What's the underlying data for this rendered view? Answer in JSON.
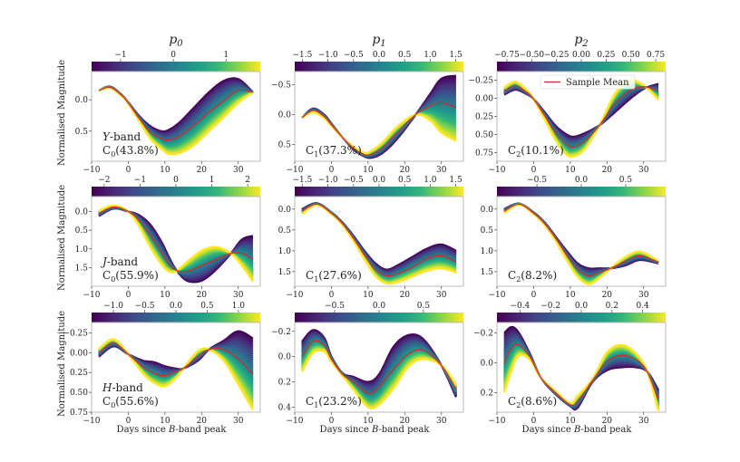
{
  "chart_data": {
    "type": "line",
    "figure": "Principal component variations of normalised NIR light curves",
    "column_titles": [
      "p",
      "p",
      "p"
    ],
    "column_title_subscripts": [
      "0",
      "1",
      "2"
    ],
    "row_labels": [
      "Y-band",
      "J-band",
      "H-band"
    ],
    "ylabel": "Normalised Magnitude",
    "xlabel": "Days since B-band peak",
    "xlim": [
      -10,
      36
    ],
    "xticks": [
      -10,
      0,
      10,
      20,
      30
    ],
    "y_inverted": true,
    "legend": {
      "label": "Sample Mean",
      "color": "#d62728",
      "placement": "upper-center",
      "panel": "Y-band p2"
    },
    "colormap": "viridis",
    "panels": [
      {
        "row": 0,
        "col": 0,
        "component": "C",
        "sub": "0",
        "variance": "(43.8%)",
        "band": "Y",
        "ylim": [
          -0.45,
          0.98
        ],
        "yticks": [
          0.0,
          0.5
        ],
        "ytick_labels": [
          "0.0",
          "0.5"
        ],
        "cbar_range": [
          -1.55,
          1.65
        ],
        "cbar_ticks": [
          -1,
          0,
          1
        ],
        "cbar_tick_labels": [
          "−1",
          "0",
          "1"
        ],
        "x": [
          -8,
          -5,
          -2,
          0,
          3,
          6,
          9,
          11,
          14,
          18,
          22,
          26,
          30,
          34
        ],
        "mean": [
          -0.15,
          -0.2,
          -0.08,
          0.05,
          0.3,
          0.52,
          0.62,
          0.64,
          0.58,
          0.4,
          0.2,
          0.02,
          -0.15,
          -0.12
        ],
        "low": [
          -0.15,
          -0.21,
          -0.09,
          0.04,
          0.26,
          0.42,
          0.5,
          0.48,
          0.36,
          0.12,
          -0.12,
          -0.3,
          -0.33,
          -0.12
        ],
        "high": [
          -0.15,
          -0.19,
          -0.07,
          0.06,
          0.34,
          0.62,
          0.78,
          0.86,
          0.85,
          0.72,
          0.5,
          0.28,
          0.05,
          -0.12
        ]
      },
      {
        "row": 0,
        "col": 1,
        "component": "C",
        "sub": "1",
        "variance": "(37.3%)",
        "band": "Y",
        "ylim": [
          -0.72,
          0.78
        ],
        "yticks": [
          -0.5,
          0.0,
          0.5
        ],
        "ytick_labels": [
          "−0.5",
          "0.0",
          "0.5"
        ],
        "cbar_range": [
          -1.65,
          1.65
        ],
        "cbar_ticks": [
          -1.5,
          -1.0,
          -0.5,
          0.0,
          0.5,
          1.0,
          1.5
        ],
        "cbar_tick_labels": [
          "−1.5",
          "−1.0",
          "−0.5",
          "0.0",
          "0.5",
          "1.0",
          "1.5"
        ],
        "x": [
          -8,
          -5,
          -2,
          0,
          3,
          6,
          9,
          11,
          14,
          18,
          23,
          27,
          30,
          34
        ],
        "mean": [
          0.05,
          -0.07,
          0.03,
          0.17,
          0.38,
          0.56,
          0.67,
          0.66,
          0.55,
          0.3,
          0.0,
          -0.15,
          -0.2,
          -0.12
        ],
        "low": [
          0.05,
          -0.1,
          0.0,
          0.15,
          0.38,
          0.58,
          0.7,
          0.72,
          0.64,
          0.4,
          0.0,
          -0.35,
          -0.6,
          -0.65
        ],
        "high": [
          0.05,
          -0.04,
          0.06,
          0.19,
          0.38,
          0.54,
          0.64,
          0.6,
          0.46,
          0.2,
          0.0,
          0.1,
          0.3,
          0.44
        ]
      },
      {
        "row": 0,
        "col": 2,
        "component": "C",
        "sub": "2",
        "variance": "(10.1%)",
        "band": "Y",
        "ylim": [
          -0.37,
          0.87
        ],
        "yticks": [
          -0.25,
          0.0,
          0.25,
          0.5,
          0.75
        ],
        "ytick_labels": [
          "−0.25",
          "0.00",
          "0.25",
          "0.50",
          "0.75"
        ],
        "cbar_range": [
          -0.85,
          0.85
        ],
        "cbar_ticks": [
          -0.75,
          -0.5,
          -0.25,
          0.0,
          0.25,
          0.5,
          0.75
        ],
        "cbar_tick_labels": [
          "−0.75",
          "−0.50",
          "−0.25",
          "0.00",
          "0.25",
          "0.50",
          "0.75"
        ],
        "x": [
          -8,
          -5,
          -2,
          0,
          3,
          6,
          9,
          11,
          14,
          18,
          22,
          26,
          30,
          34
        ],
        "mean": [
          -0.1,
          -0.17,
          -0.09,
          0.01,
          0.24,
          0.48,
          0.64,
          0.67,
          0.59,
          0.37,
          0.08,
          -0.1,
          -0.16,
          -0.1
        ],
        "low": [
          -0.05,
          -0.12,
          -0.06,
          0.01,
          0.19,
          0.38,
          0.5,
          0.53,
          0.48,
          0.37,
          0.2,
          0.02,
          -0.13,
          -0.2
        ],
        "high": [
          -0.15,
          -0.23,
          -0.12,
          0.01,
          0.29,
          0.58,
          0.78,
          0.8,
          0.7,
          0.37,
          -0.05,
          -0.25,
          -0.18,
          0.02
        ]
      },
      {
        "row": 1,
        "col": 0,
        "component": "C",
        "sub": "0",
        "variance": "(55.9%)",
        "band": "J",
        "ylim": [
          -0.4,
          2.0
        ],
        "yticks": [
          0.0,
          0.5,
          1.0,
          1.5
        ],
        "ytick_labels": [
          "0.0",
          "0.5",
          "1.0",
          "1.5"
        ],
        "cbar_range": [
          -2.35,
          2.35
        ],
        "cbar_ticks": [
          -2,
          -1,
          0,
          1,
          2
        ],
        "cbar_tick_labels": [
          "−2",
          "−1",
          "0",
          "1",
          "2"
        ],
        "x": [
          -8,
          -4,
          0,
          3,
          6,
          9,
          11,
          13,
          16,
          20,
          24,
          28,
          31,
          34
        ],
        "mean": [
          0.05,
          -0.12,
          0.0,
          0.25,
          0.65,
          1.1,
          1.4,
          1.57,
          1.6,
          1.45,
          1.28,
          1.12,
          1.12,
          1.27
        ],
        "low": [
          0.12,
          -0.08,
          0.0,
          0.1,
          0.35,
          0.8,
          1.2,
          1.55,
          1.85,
          1.85,
          1.55,
          1.12,
          0.75,
          0.65
        ],
        "high": [
          -0.02,
          -0.16,
          0.0,
          0.4,
          0.95,
          1.4,
          1.6,
          1.6,
          1.35,
          1.05,
          0.95,
          1.12,
          1.45,
          1.87
        ]
      },
      {
        "row": 1,
        "col": 1,
        "component": "C",
        "sub": "1",
        "variance": "(27.6%)",
        "band": "J",
        "ylim": [
          -0.3,
          1.85
        ],
        "yticks": [
          0.0,
          0.5,
          1.0,
          1.5
        ],
        "ytick_labels": [
          "0.0",
          "0.5",
          "1.0",
          "1.5"
        ],
        "cbar_range": [
          -1.65,
          1.65
        ],
        "cbar_ticks": [
          -1.5,
          -1.0,
          -0.5,
          0.0,
          0.5,
          1.0,
          1.5
        ],
        "cbar_tick_labels": [
          "−1.5",
          "−1.0",
          "−0.5",
          "0.0",
          "0.5",
          "1.0",
          "1.5"
        ],
        "x": [
          -8,
          -4,
          0,
          3,
          6,
          9,
          12,
          15,
          18,
          22,
          26,
          30,
          34
        ],
        "mean": [
          0.05,
          -0.12,
          0.1,
          0.35,
          0.7,
          1.1,
          1.45,
          1.6,
          1.55,
          1.4,
          1.2,
          1.12,
          1.27
        ],
        "low": [
          0.0,
          -0.14,
          0.08,
          0.32,
          0.64,
          1.0,
          1.3,
          1.45,
          1.35,
          1.15,
          0.95,
          0.85,
          1.0
        ],
        "high": [
          0.12,
          -0.1,
          0.12,
          0.38,
          0.76,
          1.2,
          1.6,
          1.78,
          1.75,
          1.62,
          1.48,
          1.42,
          1.52
        ]
      },
      {
        "row": 1,
        "col": 2,
        "component": "C",
        "sub": "2",
        "variance": "(8.2%)",
        "band": "J",
        "ylim": [
          -0.3,
          1.85
        ],
        "yticks": [
          0.0,
          0.5,
          1.0,
          1.5
        ],
        "ytick_labels": [
          "0.0",
          "0.5",
          "1.0",
          "1.5"
        ],
        "cbar_range": [
          -0.95,
          0.95
        ],
        "cbar_ticks": [
          -0.5,
          0.0,
          0.5
        ],
        "cbar_tick_labels": [
          "−0.5",
          "0.0",
          "0.5"
        ],
        "x": [
          -8,
          -4,
          0,
          3,
          6,
          9,
          12,
          15,
          18,
          21,
          25,
          29,
          34
        ],
        "mean": [
          0.05,
          -0.12,
          0.1,
          0.35,
          0.7,
          1.1,
          1.45,
          1.6,
          1.52,
          1.42,
          1.25,
          1.12,
          1.27
        ],
        "low": [
          0.0,
          -0.13,
          0.08,
          0.32,
          0.66,
          1.0,
          1.3,
          1.42,
          1.42,
          1.42,
          1.35,
          1.22,
          1.3
        ],
        "high": [
          0.1,
          -0.11,
          0.12,
          0.38,
          0.76,
          1.22,
          1.62,
          1.8,
          1.65,
          1.42,
          1.15,
          1.02,
          1.24
        ]
      },
      {
        "row": 2,
        "col": 0,
        "component": "C",
        "sub": "0",
        "variance": "(55.6%)",
        "band": "H",
        "ylim": [
          -0.38,
          0.75
        ],
        "yticks": [
          -0.25,
          0.0,
          0.25,
          0.5,
          0.75
        ],
        "ytick_labels": [
          "−0.25",
          "0.00",
          "0.25",
          "0.50",
          "0.75"
        ],
        "cbar_range": [
          -1.35,
          1.35
        ],
        "cbar_ticks": [
          -1.0,
          -0.5,
          0.0,
          0.5,
          1.0
        ],
        "cbar_tick_labels": [
          "−1.0",
          "−0.5",
          "0.0",
          "0.5",
          "1.0"
        ],
        "x": [
          -8,
          -4,
          0,
          4,
          7,
          10,
          13,
          15,
          19,
          22,
          26,
          30,
          34
        ],
        "mean": [
          0.0,
          -0.12,
          0.02,
          0.18,
          0.26,
          0.29,
          0.24,
          0.2,
          0.05,
          -0.04,
          -0.04,
          0.08,
          0.27
        ],
        "low": [
          0.05,
          -0.08,
          0.02,
          0.1,
          0.12,
          0.17,
          0.2,
          0.2,
          0.1,
          -0.04,
          -0.15,
          -0.27,
          -0.18
        ],
        "high": [
          -0.05,
          -0.17,
          0.02,
          0.26,
          0.38,
          0.42,
          0.32,
          0.2,
          -0.02,
          -0.04,
          0.1,
          0.4,
          0.72
        ]
      },
      {
        "row": 2,
        "col": 1,
        "component": "C",
        "sub": "1",
        "variance": "(23.2%)",
        "band": "H",
        "ylim": [
          -0.27,
          0.44
        ],
        "yticks": [
          -0.2,
          0.0,
          0.2,
          0.4
        ],
        "ytick_labels": [
          "−0.2",
          "0.0",
          "0.2",
          "0.4"
        ],
        "cbar_range": [
          -0.95,
          0.95
        ],
        "cbar_ticks": [
          -0.5,
          0.0,
          0.5
        ],
        "cbar_tick_labels": [
          "−0.5",
          "0.0",
          "0.5"
        ],
        "x": [
          -8,
          -5,
          -2,
          0,
          3,
          6,
          10,
          13,
          17,
          21,
          25,
          30,
          34
        ],
        "mean": [
          0.0,
          -0.12,
          -0.09,
          0.02,
          0.14,
          0.2,
          0.29,
          0.24,
          0.1,
          -0.02,
          -0.05,
          0.07,
          0.26
        ],
        "low": [
          -0.12,
          -0.21,
          -0.15,
          0.0,
          0.13,
          0.16,
          0.2,
          0.14,
          -0.08,
          -0.17,
          -0.14,
          0.07,
          0.32
        ],
        "high": [
          0.12,
          -0.03,
          -0.04,
          0.04,
          0.15,
          0.26,
          0.4,
          0.38,
          0.25,
          0.08,
          0.02,
          0.07,
          0.22
        ]
      },
      {
        "row": 2,
        "col": 2,
        "component": "C",
        "sub": "2",
        "variance": "(8.6%)",
        "band": "H",
        "ylim": [
          -0.27,
          0.33
        ],
        "yticks": [
          -0.2,
          0.0,
          0.2
        ],
        "ytick_labels": [
          "−0.2",
          "0.0",
          "0.2"
        ],
        "cbar_range": [
          -0.55,
          0.55
        ],
        "cbar_ticks": [
          -0.4,
          -0.2,
          0.0,
          0.2,
          0.4
        ],
        "cbar_tick_labels": [
          "−0.4",
          "−0.2",
          "0.0",
          "0.2",
          "0.4"
        ],
        "x": [
          -8,
          -6,
          -4,
          -1,
          2,
          6,
          10,
          12,
          16,
          20,
          24,
          28,
          31,
          34
        ],
        "mean": [
          0.0,
          -0.1,
          -0.12,
          -0.04,
          0.1,
          0.2,
          0.28,
          0.26,
          0.12,
          -0.01,
          -0.05,
          -0.02,
          0.06,
          0.25
        ],
        "low": [
          -0.2,
          -0.24,
          -0.2,
          -0.06,
          0.1,
          0.21,
          0.29,
          0.3,
          0.13,
          0.05,
          0.03,
          0.03,
          0.06,
          0.18
        ],
        "high": [
          0.2,
          0.05,
          -0.05,
          -0.02,
          0.1,
          0.19,
          0.27,
          0.22,
          0.11,
          -0.07,
          -0.12,
          -0.06,
          0.06,
          0.32
        ]
      }
    ]
  }
}
